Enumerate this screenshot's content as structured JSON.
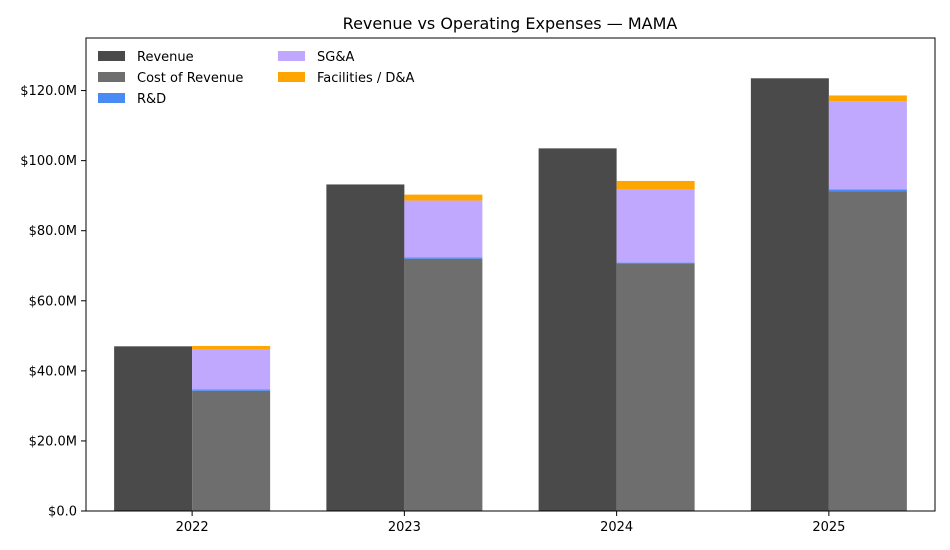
{
  "chart_data": {
    "type": "bar",
    "title": "Revenue vs Operating Expenses — MAMA",
    "xlabel": "",
    "ylabel": "",
    "categories": [
      "2022",
      "2023",
      "2024",
      "2025"
    ],
    "ylim": [
      0,
      135
    ],
    "y_ticks": [
      0,
      20,
      40,
      60,
      80,
      100,
      120
    ],
    "y_tick_labels": [
      "$0.0",
      "$20.0M",
      "$40.0M",
      "$60.0M",
      "$80.0M",
      "$100.0M",
      "$120.0M"
    ],
    "unit": "$M",
    "grid": false,
    "legend_position": "top-left",
    "revenue_series": {
      "name": "Revenue",
      "color": "#4a4a4a",
      "values": [
        47.0,
        93.2,
        103.5,
        123.5
      ]
    },
    "expense_series": [
      {
        "name": "Cost of Revenue",
        "color": "#6e6e6e",
        "values": [
          34.3,
          72.0,
          70.5,
          91.2
        ]
      },
      {
        "name": "R&D",
        "color": "#4a8af4",
        "values": [
          0.4,
          0.4,
          0.4,
          0.6
        ]
      },
      {
        "name": "SG&A",
        "color": "#c0a8ff",
        "values": [
          11.3,
          16.2,
          21.0,
          25.2
        ]
      },
      {
        "name": "Facilities / D&A",
        "color": "#ffa500",
        "values": [
          1.1,
          1.7,
          2.3,
          1.6
        ]
      }
    ]
  }
}
